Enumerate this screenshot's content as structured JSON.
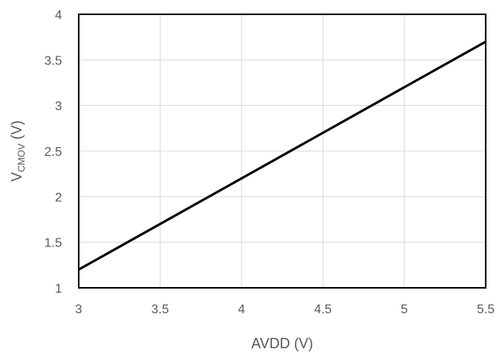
{
  "chart_data": {
    "type": "line",
    "title": "",
    "xlabel": "AVDD (V)",
    "ylabel": {
      "main": "V",
      "subscript": "CMOV",
      "suffix": " (V)"
    },
    "xlim": [
      3,
      5.5
    ],
    "ylim": [
      1,
      4
    ],
    "x_ticks": [
      3,
      3.5,
      4,
      4.5,
      5,
      5.5
    ],
    "y_ticks": [
      1,
      1.5,
      2,
      2.5,
      3,
      3.5,
      4
    ],
    "x_tick_labels": [
      "3",
      "3.5",
      "4",
      "4.5",
      "5",
      "5.5"
    ],
    "y_tick_labels": [
      "1",
      "1.5",
      "2",
      "2.5",
      "3",
      "3.5",
      "4"
    ],
    "grid": true,
    "legend": "none",
    "series": [
      {
        "color": "#000000",
        "x": [
          3,
          5.5
        ],
        "y": [
          1.2,
          3.7
        ]
      }
    ]
  }
}
